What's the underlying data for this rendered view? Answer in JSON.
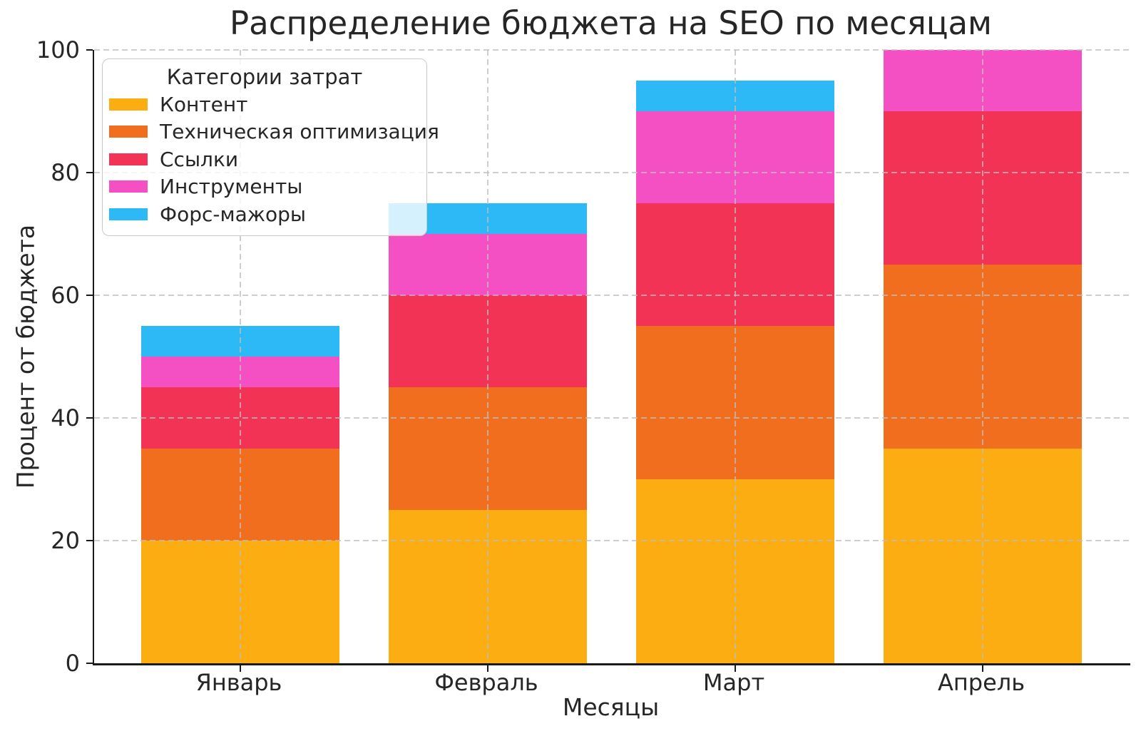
{
  "chart_data": {
    "type": "bar",
    "stacked": true,
    "title": "Распределение бюджета на SEO по месяцам",
    "xlabel": "Месяцы",
    "ylabel": "Процент от бюджета",
    "ylim": [
      0,
      100
    ],
    "yticks": [
      0,
      20,
      40,
      60,
      80,
      100
    ],
    "grid": "dashed-both-axes",
    "categories": [
      "Январь",
      "Февраль",
      "Март",
      "Апрель"
    ],
    "legend_title": "Категории затрат",
    "legend_position": "upper-left",
    "series": [
      {
        "name": "Контент",
        "color": "#FBAD12",
        "values": [
          20,
          25,
          30,
          35
        ]
      },
      {
        "name": "Техническая оптимизация",
        "color": "#F06E1E",
        "values": [
          15,
          20,
          25,
          30
        ]
      },
      {
        "name": "Ссылки",
        "color": "#F23355",
        "values": [
          10,
          15,
          20,
          25
        ]
      },
      {
        "name": "Инструменты",
        "color": "#F450C4",
        "values": [
          5,
          10,
          15,
          10
        ]
      },
      {
        "name": "Форс-мажоры",
        "color": "#2DB9F5",
        "values": [
          5,
          5,
          5,
          0
        ]
      }
    ],
    "totals": [
      55,
      75,
      95,
      100
    ]
  }
}
